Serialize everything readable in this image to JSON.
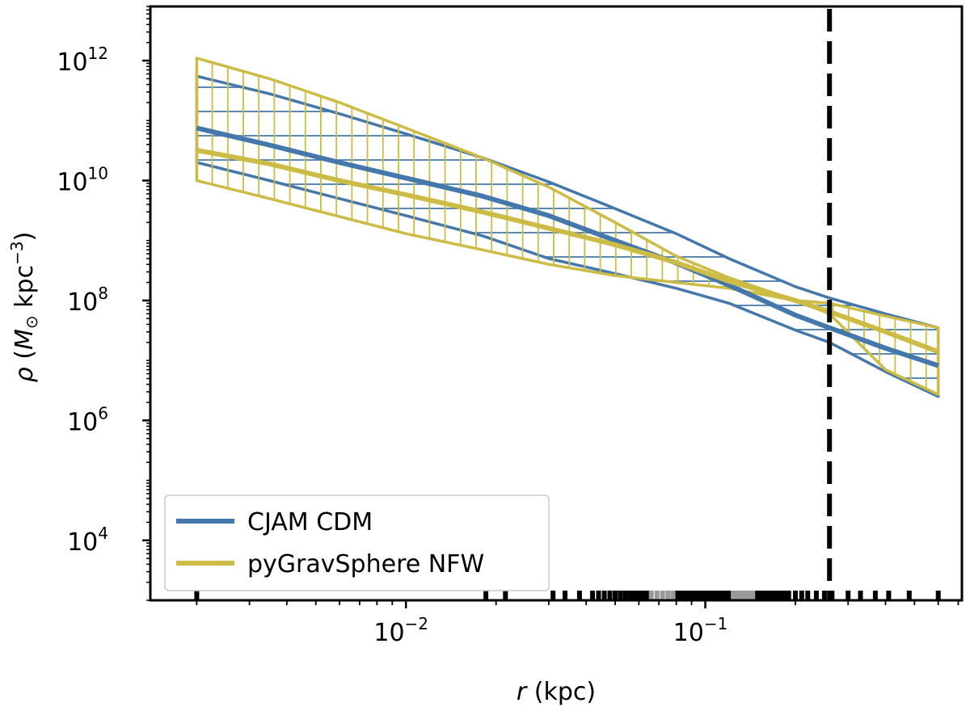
{
  "chart_data": {
    "type": "line",
    "xscale": "log",
    "yscale": "log",
    "xlabel_var": "r",
    "xlabel_unit": "(kpc)",
    "ylabel": "ρ (M⊙ kpc⁻³)",
    "ylabel_var": "ρ",
    "ylabel_m": "M",
    "ylabel_sun": "⊙",
    "ylabel_unit": "kpc",
    "ylabel_exp": "−3",
    "xlim": [
      0.0014,
      0.72
    ],
    "ylim": [
      1000.0,
      8000000000000.0
    ],
    "x_ticks": [
      {
        "base": "10",
        "exp": "−2",
        "value": 0.01
      },
      {
        "base": "10",
        "exp": "−1",
        "value": 0.1
      }
    ],
    "y_ticks": [
      {
        "base": "10",
        "exp": "12",
        "value": 1000000000000.0
      },
      {
        "base": "10",
        "exp": "10",
        "value": 10000000000.0
      },
      {
        "base": "10",
        "exp": "8",
        "value": 100000000.0
      },
      {
        "base": "10",
        "exp": "6",
        "value": 1000000.0
      },
      {
        "base": "10",
        "exp": "4",
        "value": 10000.0
      }
    ],
    "series": [
      {
        "name": "CJAM CDM",
        "color": "#4477aa",
        "hatch": "horizontal",
        "x": [
          0.002,
          0.0035,
          0.006,
          0.01,
          0.018,
          0.03,
          0.05,
          0.08,
          0.12,
          0.2,
          0.26,
          0.4,
          0.6
        ],
        "median": [
          75000000000.0,
          39000000000.0,
          20000000000.0,
          11000000000.0,
          5500000000.0,
          2600000000.0,
          1000000000.0,
          420000000.0,
          180000000.0,
          57000000.0,
          35000000.0,
          16000000.0,
          8200000.0
        ],
        "upper": [
          550000000000.0,
          280000000000.0,
          130000000000.0,
          60000000000.0,
          24000000000.0,
          9500000000.0,
          3400000000.0,
          1300000000.0,
          500000000.0,
          170000000.0,
          110000000.0,
          60000000.0,
          35000000.0
        ],
        "lower": [
          20000000000.0,
          10000000000.0,
          5000000000.0,
          2600000000.0,
          1200000000.0,
          500000000.0,
          280000000.0,
          160000000.0,
          90000000.0,
          32000000.0,
          20000000.0,
          6500000.0,
          2500000.0
        ]
      },
      {
        "name": "pyGravSphere NFW",
        "color": "#ccbb44",
        "hatch": "vertical",
        "x": [
          0.002,
          0.0035,
          0.006,
          0.01,
          0.018,
          0.03,
          0.05,
          0.08,
          0.12,
          0.2,
          0.26,
          0.4,
          0.6
        ],
        "median": [
          32000000000.0,
          19000000000.0,
          10000000000.0,
          5800000000.0,
          3000000000.0,
          1600000000.0,
          850000000.0,
          430000000.0,
          210000000.0,
          100000000.0,
          65000000.0,
          30000000.0,
          14000000.0
        ],
        "upper": [
          1100000000000.0,
          500000000000.0,
          200000000000.0,
          75000000000.0,
          24000000000.0,
          7800000000.0,
          2000000000.0,
          550000000.0,
          240000000.0,
          100000000.0,
          90000000.0,
          55000000.0,
          35000000.0
        ],
        "lower": [
          10000000000.0,
          5000000000.0,
          2500000000.0,
          1300000000.0,
          700000000.0,
          400000000.0,
          260000000.0,
          200000000.0,
          160000000.0,
          100000000.0,
          60000000.0,
          7000000.0,
          2700000.0
        ]
      }
    ],
    "vline": {
      "x": 0.26,
      "style": "dashed",
      "color": "#000000"
    },
    "rug": {
      "black": [
        0.002,
        0.0185,
        0.0215,
        0.031,
        0.034,
        0.038,
        0.042,
        0.044,
        0.046,
        0.048,
        0.05,
        0.052,
        0.054,
        0.056,
        0.058,
        0.06,
        0.062,
        0.064,
        0.08,
        0.082,
        0.085,
        0.088,
        0.09,
        0.092,
        0.095,
        0.098,
        0.1,
        0.102,
        0.105,
        0.108,
        0.11,
        0.112,
        0.115,
        0.118,
        0.12,
        0.148,
        0.152,
        0.155,
        0.158,
        0.162,
        0.165,
        0.168,
        0.172,
        0.175,
        0.18,
        0.185,
        0.19,
        0.2,
        0.21,
        0.22,
        0.235,
        0.25,
        0.265,
        0.3,
        0.33,
        0.37,
        0.41,
        0.48,
        0.6
      ],
      "gray": [
        0.066,
        0.069,
        0.072,
        0.075,
        0.078,
        0.124,
        0.128,
        0.132,
        0.136,
        0.14,
        0.144
      ]
    },
    "legend": {
      "position": "lower-left",
      "entries": [
        "CJAM CDM",
        "pyGravSphere NFW"
      ]
    }
  }
}
